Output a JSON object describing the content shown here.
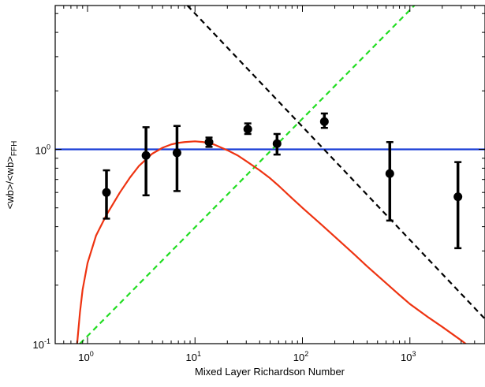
{
  "chart_data": {
    "type": "scatter",
    "title": "",
    "xlabel": "Mixed Layer Richardson Number",
    "ylabel": {
      "main": "<wb>/<wb>",
      "subscript": "FFH"
    },
    "xscale": "log",
    "yscale": "log",
    "xlim": [
      0.5,
      5000
    ],
    "ylim": [
      0.1,
      5.5
    ],
    "grid": false,
    "x_ticks": [
      {
        "value": 1,
        "base": "10",
        "exp": "0"
      },
      {
        "value": 10,
        "base": "10",
        "exp": "1"
      },
      {
        "value": 100,
        "base": "10",
        "exp": "2"
      },
      {
        "value": 1000,
        "base": "10",
        "exp": "3"
      }
    ],
    "y_ticks": [
      {
        "value": 0.1,
        "base": "10",
        "exp": "-1"
      },
      {
        "value": 1,
        "base": "10",
        "exp": "0"
      }
    ],
    "series": [
      {
        "style": "points-with-error-bars",
        "color": "#000000",
        "points": [
          {
            "x": 1.5,
            "y": 0.6,
            "ylo": 0.44,
            "yhi": 0.78
          },
          {
            "x": 3.5,
            "y": 0.93,
            "ylo": 0.58,
            "yhi": 1.3
          },
          {
            "x": 6.8,
            "y": 0.96,
            "ylo": 0.61,
            "yhi": 1.32
          },
          {
            "x": 13.5,
            "y": 1.09,
            "ylo": 1.03,
            "yhi": 1.15
          },
          {
            "x": 31,
            "y": 1.27,
            "ylo": 1.2,
            "yhi": 1.36
          },
          {
            "x": 58,
            "y": 1.07,
            "ylo": 0.94,
            "yhi": 1.2
          },
          {
            "x": 160,
            "y": 1.39,
            "ylo": 1.29,
            "yhi": 1.53
          },
          {
            "x": 650,
            "y": 0.75,
            "ylo": 0.43,
            "yhi": 1.09
          },
          {
            "x": 2800,
            "y": 0.57,
            "ylo": 0.31,
            "yhi": 0.86
          }
        ]
      },
      {
        "style": "solid-line",
        "color": "#1a3fd6",
        "x": [
          0.5,
          5000
        ],
        "y": [
          1.0,
          1.0
        ]
      },
      {
        "style": "dashed-line",
        "color": "#000000",
        "x": [
          8.5,
          5000
        ],
        "y": [
          5.5,
          0.134
        ]
      },
      {
        "style": "dashed-line",
        "color": "#22dd22",
        "x": [
          0.85,
          1100
        ],
        "y": [
          0.1,
          5.5
        ]
      },
      {
        "style": "solid-line",
        "color": "#ee3311",
        "x": [
          0.8,
          0.85,
          0.9,
          1.0,
          1.2,
          1.5,
          2,
          2.5,
          3,
          4,
          5,
          6,
          7,
          8,
          10,
          12,
          15,
          20,
          25,
          30,
          40,
          50,
          60,
          80,
          100,
          150,
          200,
          300,
          400,
          600,
          800,
          1000,
          1500,
          2000,
          3000,
          5000
        ],
        "y": [
          0.1,
          0.145,
          0.19,
          0.26,
          0.36,
          0.46,
          0.6,
          0.72,
          0.82,
          0.95,
          1.02,
          1.06,
          1.08,
          1.09,
          1.1,
          1.09,
          1.06,
          0.99,
          0.93,
          0.87,
          0.78,
          0.71,
          0.65,
          0.56,
          0.5,
          0.41,
          0.355,
          0.29,
          0.25,
          0.205,
          0.178,
          0.16,
          0.136,
          0.122,
          0.104,
          0.084
        ]
      }
    ]
  }
}
